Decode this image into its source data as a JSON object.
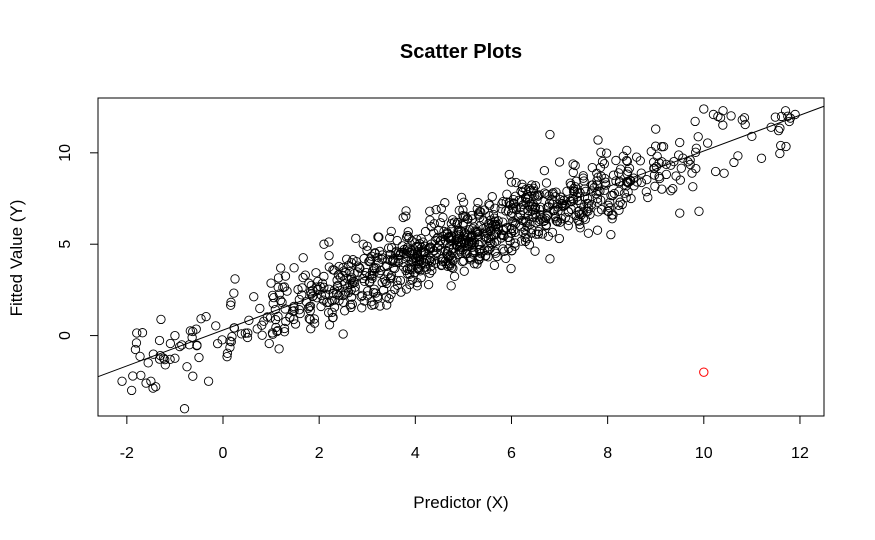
{
  "chart_data": {
    "type": "scatter",
    "title": "Scatter Plots",
    "xlabel": "Predictor (X)",
    "ylabel": "Fitted Value (Y)",
    "xlim": [
      -2.6,
      12.5
    ],
    "ylim": [
      -4.4,
      13.0
    ],
    "x_ticks": [
      -2,
      0,
      2,
      4,
      6,
      8,
      10,
      12
    ],
    "y_ticks": [
      0,
      5,
      10
    ],
    "grid": false,
    "legend": "none",
    "n_points": 1000,
    "point_marker": "open circle",
    "point_color": "#000000",
    "fit_line": {
      "intercept": 0.3,
      "slope": 0.98,
      "color": "#000000"
    },
    "outlier": {
      "x": 10.0,
      "y": -2.0,
      "color": "#ff0000"
    },
    "edge_points": [
      {
        "x": -2.1,
        "y": -2.5
      },
      {
        "x": -1.9,
        "y": -3.0
      },
      {
        "x": -1.8,
        "y": -0.4
      },
      {
        "x": -1.6,
        "y": -2.6
      },
      {
        "x": -1.5,
        "y": -2.5
      },
      {
        "x": -1.4,
        "y": -2.8
      },
      {
        "x": -1.2,
        "y": -1.6
      },
      {
        "x": -1.1,
        "y": -1.3
      },
      {
        "x": -1.0,
        "y": 0.0
      },
      {
        "x": -0.9,
        "y": -0.6
      },
      {
        "x": -0.8,
        "y": -4.0
      },
      {
        "x": -0.7,
        "y": -0.5
      },
      {
        "x": -0.5,
        "y": -1.2
      },
      {
        "x": -0.3,
        "y": -2.5
      },
      {
        "x": 0.25,
        "y": 3.1
      },
      {
        "x": 1.2,
        "y": 3.7
      },
      {
        "x": 2.1,
        "y": 5.0
      },
      {
        "x": 3.5,
        "y": 5.7
      },
      {
        "x": 4.3,
        "y": 6.8
      },
      {
        "x": 5.6,
        "y": 7.6
      },
      {
        "x": 6.0,
        "y": 8.4
      },
      {
        "x": 6.5,
        "y": 7.0
      },
      {
        "x": 6.8,
        "y": 11.0
      },
      {
        "x": 6.8,
        "y": 4.2
      },
      {
        "x": 7.0,
        "y": 9.5
      },
      {
        "x": 7.6,
        "y": 5.6
      },
      {
        "x": 7.8,
        "y": 10.7
      },
      {
        "x": 9.0,
        "y": 11.3
      },
      {
        "x": 9.5,
        "y": 6.7
      },
      {
        "x": 9.9,
        "y": 6.8
      },
      {
        "x": 10.0,
        "y": 12.4
      },
      {
        "x": 10.2,
        "y": 12.1
      },
      {
        "x": 10.4,
        "y": 12.3
      },
      {
        "x": 10.8,
        "y": 11.8
      },
      {
        "x": 11.0,
        "y": 10.9
      },
      {
        "x": 11.2,
        "y": 9.7
      },
      {
        "x": 11.4,
        "y": 11.4
      },
      {
        "x": 11.6,
        "y": 10.4
      },
      {
        "x": 11.7,
        "y": 12.3
      },
      {
        "x": 11.8,
        "y": 11.9
      },
      {
        "x": 11.9,
        "y": 12.1
      }
    ]
  }
}
